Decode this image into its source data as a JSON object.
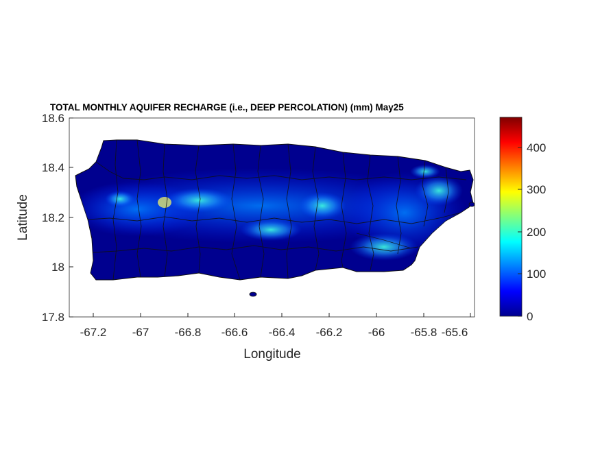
{
  "map": {
    "title": "TOTAL MONTHLY AQUIFER RECHARGE (i.e., DEEP PERCOLATION) (mm)  May25",
    "xlabel": "Longitude",
    "ylabel": "Latitude",
    "x_ticks": [
      "-67.2",
      "-67",
      "-66.8",
      "-66.6",
      "-66.4",
      "-66.2",
      "-66",
      "-65.8",
      "-65.6"
    ],
    "y_ticks": [
      "18.6",
      "18.4",
      "18.2",
      "18",
      "17.8"
    ],
    "colorbar": {
      "ticks": [
        "0",
        "100",
        "200",
        "300",
        "400"
      ],
      "min": 0,
      "max": 470,
      "colormap": "jet"
    },
    "colors": {
      "low": "#00008f",
      "mid": "#00ffff",
      "high": "#800000",
      "outline": "#111111"
    }
  }
}
